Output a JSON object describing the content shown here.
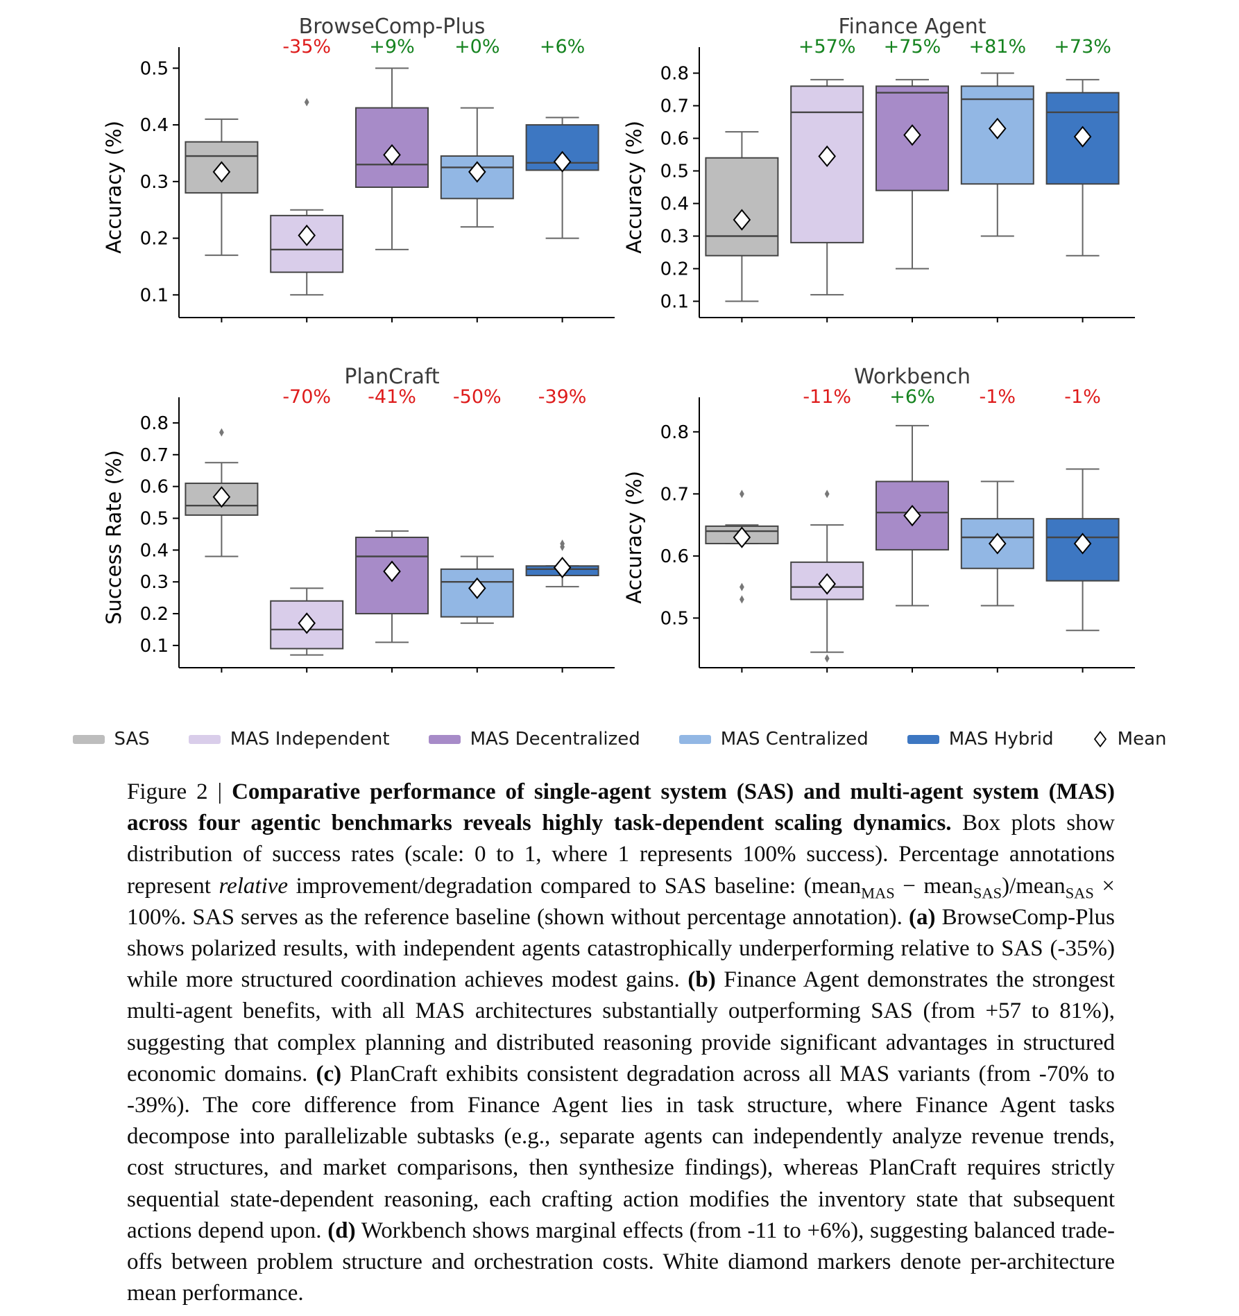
{
  "chart_data": [
    {
      "type": "box",
      "title": "BrowseComp-Plus",
      "ylabel": "Accuracy (%)",
      "ylim": [
        0.06,
        0.52
      ],
      "yticks": [
        0.1,
        0.2,
        0.3,
        0.4,
        0.5
      ],
      "series": [
        {
          "name": "SAS",
          "annotation": null,
          "whisker_low": 0.17,
          "q1": 0.28,
          "median": 0.345,
          "q3": 0.37,
          "whisker_high": 0.41,
          "mean": 0.317,
          "outliers": []
        },
        {
          "name": "MAS Independent",
          "annotation": {
            "text": "-35%",
            "color": "#de1b1b"
          },
          "whisker_low": 0.1,
          "q1": 0.14,
          "median": 0.18,
          "q3": 0.24,
          "whisker_high": 0.25,
          "mean": 0.205,
          "outliers": [
            0.44
          ]
        },
        {
          "name": "MAS Decentralized",
          "annotation": {
            "text": "+9%",
            "color": "#15831f"
          },
          "whisker_low": 0.18,
          "q1": 0.29,
          "median": 0.33,
          "q3": 0.43,
          "whisker_high": 0.5,
          "mean": 0.347,
          "outliers": []
        },
        {
          "name": "MAS Centralized",
          "annotation": {
            "text": "+0%",
            "color": "#15831f"
          },
          "whisker_low": 0.22,
          "q1": 0.27,
          "median": 0.325,
          "q3": 0.345,
          "whisker_high": 0.43,
          "mean": 0.317,
          "outliers": []
        },
        {
          "name": "MAS Hybrid",
          "annotation": {
            "text": "+6%",
            "color": "#15831f"
          },
          "whisker_low": 0.2,
          "q1": 0.32,
          "median": 0.333,
          "q3": 0.4,
          "whisker_high": 0.413,
          "mean": 0.335,
          "outliers": []
        }
      ]
    },
    {
      "type": "box",
      "title": "Finance Agent",
      "ylabel": "Accuracy (%)",
      "ylim": [
        0.05,
        0.85
      ],
      "yticks": [
        0.1,
        0.2,
        0.3,
        0.4,
        0.5,
        0.6,
        0.7,
        0.8
      ],
      "series": [
        {
          "name": "SAS",
          "annotation": null,
          "whisker_low": 0.1,
          "q1": 0.24,
          "median": 0.3,
          "q3": 0.54,
          "whisker_high": 0.62,
          "mean": 0.35,
          "outliers": []
        },
        {
          "name": "MAS Independent",
          "annotation": {
            "text": "+57%",
            "color": "#15831f"
          },
          "whisker_low": 0.12,
          "q1": 0.28,
          "median": 0.68,
          "q3": 0.76,
          "whisker_high": 0.78,
          "mean": 0.545,
          "outliers": []
        },
        {
          "name": "MAS Decentralized",
          "annotation": {
            "text": "+75%",
            "color": "#15831f"
          },
          "whisker_low": 0.2,
          "q1": 0.44,
          "median": 0.74,
          "q3": 0.76,
          "whisker_high": 0.78,
          "mean": 0.61,
          "outliers": []
        },
        {
          "name": "MAS Centralized",
          "annotation": {
            "text": "+81%",
            "color": "#15831f"
          },
          "whisker_low": 0.3,
          "q1": 0.46,
          "median": 0.72,
          "q3": 0.76,
          "whisker_high": 0.8,
          "mean": 0.63,
          "outliers": []
        },
        {
          "name": "MAS Hybrid",
          "annotation": {
            "text": "+73%",
            "color": "#15831f"
          },
          "whisker_low": 0.24,
          "q1": 0.46,
          "median": 0.68,
          "q3": 0.74,
          "whisker_high": 0.78,
          "mean": 0.605,
          "outliers": []
        }
      ]
    },
    {
      "type": "box",
      "title": "PlanCraft",
      "ylabel": "Success Rate (%)",
      "ylim": [
        0.03,
        0.85
      ],
      "yticks": [
        0.1,
        0.2,
        0.3,
        0.4,
        0.5,
        0.6,
        0.7,
        0.8
      ],
      "series": [
        {
          "name": "SAS",
          "annotation": null,
          "whisker_low": 0.38,
          "q1": 0.51,
          "median": 0.54,
          "q3": 0.61,
          "whisker_high": 0.675,
          "mean": 0.567,
          "outliers": [
            0.77
          ]
        },
        {
          "name": "MAS Independent",
          "annotation": {
            "text": "-70%",
            "color": "#de1b1b"
          },
          "whisker_low": 0.07,
          "q1": 0.09,
          "median": 0.15,
          "q3": 0.24,
          "whisker_high": 0.28,
          "mean": 0.17,
          "outliers": []
        },
        {
          "name": "MAS Decentralized",
          "annotation": {
            "text": "-41%",
            "color": "#de1b1b"
          },
          "whisker_low": 0.11,
          "q1": 0.2,
          "median": 0.38,
          "q3": 0.44,
          "whisker_high": 0.46,
          "mean": 0.333,
          "outliers": []
        },
        {
          "name": "MAS Centralized",
          "annotation": {
            "text": "-50%",
            "color": "#de1b1b"
          },
          "whisker_low": 0.17,
          "q1": 0.19,
          "median": 0.3,
          "q3": 0.34,
          "whisker_high": 0.38,
          "mean": 0.28,
          "outliers": []
        },
        {
          "name": "MAS Hybrid",
          "annotation": {
            "text": "-39%",
            "color": "#de1b1b"
          },
          "whisker_low": 0.285,
          "q1": 0.32,
          "median": 0.34,
          "q3": 0.35,
          "whisker_high": 0.35,
          "mean": 0.345,
          "outliers": [
            0.41,
            0.42
          ]
        }
      ]
    },
    {
      "type": "box",
      "title": "Workbench",
      "ylabel": "Accuracy (%)",
      "ylim": [
        0.42,
        0.84
      ],
      "yticks": [
        0.5,
        0.6,
        0.7,
        0.8
      ],
      "series": [
        {
          "name": "SAS",
          "annotation": null,
          "whisker_low": 0.62,
          "q1": 0.62,
          "median": 0.64,
          "q3": 0.648,
          "whisker_high": 0.65,
          "mean": 0.63,
          "outliers": [
            0.7,
            0.55,
            0.53
          ]
        },
        {
          "name": "MAS Independent",
          "annotation": {
            "text": "-11%",
            "color": "#de1b1b"
          },
          "whisker_low": 0.445,
          "q1": 0.53,
          "median": 0.55,
          "q3": 0.59,
          "whisker_high": 0.65,
          "mean": 0.555,
          "outliers": [
            0.7,
            0.435
          ]
        },
        {
          "name": "MAS Decentralized",
          "annotation": {
            "text": "+6%",
            "color": "#15831f"
          },
          "whisker_low": 0.52,
          "q1": 0.61,
          "median": 0.67,
          "q3": 0.72,
          "whisker_high": 0.81,
          "mean": 0.665,
          "outliers": []
        },
        {
          "name": "MAS Centralized",
          "annotation": {
            "text": "-1%",
            "color": "#de1b1b"
          },
          "whisker_low": 0.52,
          "q1": 0.58,
          "median": 0.63,
          "q3": 0.66,
          "whisker_high": 0.72,
          "mean": 0.62,
          "outliers": []
        },
        {
          "name": "MAS Hybrid",
          "annotation": {
            "text": "-1%",
            "color": "#de1b1b"
          },
          "whisker_low": 0.48,
          "q1": 0.56,
          "median": 0.63,
          "q3": 0.66,
          "whisker_high": 0.74,
          "mean": 0.62,
          "outliers": []
        }
      ]
    }
  ],
  "legend": {
    "items": [
      {
        "label": "SAS",
        "color": "#bdbdbd"
      },
      {
        "label": "MAS Independent",
        "color": "#d9cdea"
      },
      {
        "label": "MAS Decentralized",
        "color": "#a78bc8"
      },
      {
        "label": "MAS Centralized",
        "color": "#92b7e4"
      },
      {
        "label": "MAS Hybrid",
        "color": "#3d77c2"
      }
    ],
    "mean_label": "Mean"
  },
  "caption": {
    "segments": [
      {
        "text": "Figure 2 | ",
        "style": "normal"
      },
      {
        "text": "Comparative performance of single-agent system (SAS) and multi-agent system (MAS) across four agentic benchmarks reveals highly task-dependent scaling dynamics.",
        "style": "bold"
      },
      {
        "text": " Box plots show distribution of success rates (scale: 0 to 1, where 1 represents 100% success). Percentage annotations represent ",
        "style": "normal"
      },
      {
        "text": "relative",
        "style": "italic"
      },
      {
        "text": " improvement/degradation compared to SAS baseline: (mean",
        "style": "normal"
      },
      {
        "text": "MAS",
        "style": "sub"
      },
      {
        "text": " − mean",
        "style": "normal"
      },
      {
        "text": "SAS",
        "style": "sub"
      },
      {
        "text": ")/mean",
        "style": "normal"
      },
      {
        "text": "SAS",
        "style": "sub"
      },
      {
        "text": " × 100%. SAS serves as the reference baseline (shown without percentage annotation). ",
        "style": "normal"
      },
      {
        "text": "(a)",
        "style": "bold"
      },
      {
        "text": " BrowseComp-Plus shows polarized results, with independent agents catastrophically underperforming relative to SAS (-35%) while more structured coordination achieves modest gains. ",
        "style": "normal"
      },
      {
        "text": "(b)",
        "style": "bold"
      },
      {
        "text": " Finance Agent demonstrates the strongest multi-agent benefits, with all MAS architectures substantially outperforming SAS (from +57 to 81%), suggesting that complex planning and distributed reasoning provide significant advantages in structured economic domains. ",
        "style": "normal"
      },
      {
        "text": "(c)",
        "style": "bold"
      },
      {
        "text": " PlanCraft exhibits consistent degradation across all MAS variants (from -70% to -39%). The core difference from Finance Agent lies in task structure, where Finance Agent tasks decompose into parallelizable subtasks (e.g., separate agents can independently analyze revenue trends, cost structures, and market comparisons, then synthesize findings), whereas PlanCraft requires strictly sequential state-dependent reasoning, each crafting action modifies the inventory state that subsequent actions depend upon. ",
        "style": "normal"
      },
      {
        "text": "(d)",
        "style": "bold"
      },
      {
        "text": " Workbench shows marginal effects (from -11 to +6%), suggesting balanced trade-offs between problem structure and orchestration costs. White diamond markers denote per-architecture mean performance.",
        "style": "normal"
      }
    ]
  }
}
